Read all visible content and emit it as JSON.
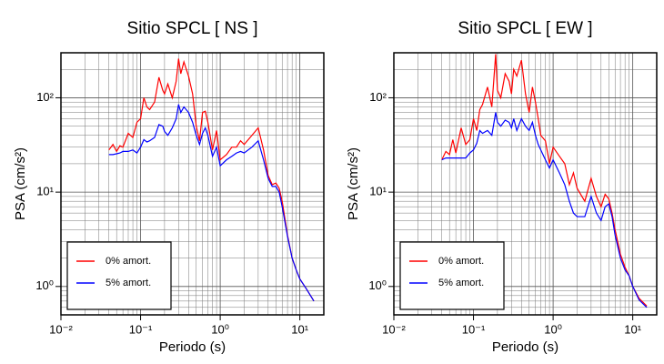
{
  "chart_data": [
    {
      "type": "line",
      "title": "Sitio SPCL [ NS ]",
      "xlabel": "Periodo (s)",
      "ylabel": "PSA (cm/s²)",
      "log_x": true,
      "log_y": true,
      "grid": true,
      "legend": "lower left",
      "xlim": [
        0.01,
        20
      ],
      "ylim": [
        0.5,
        300
      ],
      "xticks": [
        {
          "value": 0.01,
          "label": "10⁻²"
        },
        {
          "value": 0.1,
          "label": "10⁻¹"
        },
        {
          "value": 1,
          "label": "10⁰"
        },
        {
          "value": 10,
          "label": "10¹"
        }
      ],
      "yticks": [
        {
          "value": 1,
          "label": "10⁰"
        },
        {
          "value": 10,
          "label": "10¹"
        },
        {
          "value": 100,
          "label": "10²"
        }
      ],
      "x": [
        0.04,
        0.045,
        0.05,
        0.055,
        0.06,
        0.07,
        0.08,
        0.09,
        0.1,
        0.11,
        0.12,
        0.13,
        0.15,
        0.17,
        0.19,
        0.2,
        0.22,
        0.25,
        0.28,
        0.3,
        0.32,
        0.35,
        0.4,
        0.45,
        0.5,
        0.55,
        0.6,
        0.65,
        0.7,
        0.8,
        0.9,
        1.0,
        1.2,
        1.4,
        1.6,
        1.8,
        2.0,
        2.5,
        3.0,
        3.5,
        4.0,
        4.5,
        5.0,
        5.5,
        6,
        7,
        8,
        9,
        10,
        12,
        15
      ],
      "series": [
        {
          "name": "0% amort.",
          "color": "#ff0000",
          "values": [
            28,
            32,
            27,
            31,
            30,
            42,
            38,
            55,
            60,
            100,
            80,
            75,
            90,
            165,
            120,
            110,
            140,
            100,
            150,
            260,
            180,
            240,
            170,
            110,
            50,
            35,
            70,
            72,
            55,
            28,
            45,
            22,
            25,
            30,
            30,
            35,
            32,
            40,
            48,
            28,
            15,
            12,
            12.5,
            11,
            8,
            3.5,
            2,
            1.5,
            1.2,
            0.95,
            0.7
          ]
        },
        {
          "name": "5% amort.",
          "color": "#0000ff",
          "values": [
            25,
            25,
            25.5,
            26,
            27,
            27,
            28,
            26,
            30,
            36,
            34,
            35,
            38,
            52,
            50,
            44,
            40,
            48,
            60,
            85,
            70,
            80,
            70,
            55,
            40,
            32,
            42,
            48,
            40,
            24,
            30,
            19,
            22,
            24,
            26,
            27,
            26,
            30,
            35,
            22,
            14,
            11.5,
            11.5,
            10,
            7,
            3.4,
            2,
            1.5,
            1.2,
            0.95,
            0.7
          ]
        }
      ]
    },
    {
      "type": "line",
      "title": "Sitio SPCL [ EW ]",
      "xlabel": "Periodo (s)",
      "ylabel": "PSA (cm/s²)",
      "log_x": true,
      "log_y": true,
      "grid": true,
      "legend": "lower left",
      "xlim": [
        0.01,
        20
      ],
      "ylim": [
        0.5,
        300
      ],
      "xticks": [
        {
          "value": 0.01,
          "label": "10⁻²"
        },
        {
          "value": 0.1,
          "label": "10⁻¹"
        },
        {
          "value": 1,
          "label": "10⁰"
        },
        {
          "value": 10,
          "label": "10¹"
        }
      ],
      "yticks": [
        {
          "value": 1,
          "label": "10⁰"
        },
        {
          "value": 10,
          "label": "10¹"
        },
        {
          "value": 100,
          "label": "10²"
        }
      ],
      "x": [
        0.04,
        0.045,
        0.05,
        0.055,
        0.06,
        0.07,
        0.08,
        0.09,
        0.1,
        0.11,
        0.12,
        0.13,
        0.15,
        0.17,
        0.19,
        0.2,
        0.22,
        0.25,
        0.28,
        0.3,
        0.32,
        0.35,
        0.4,
        0.45,
        0.5,
        0.55,
        0.6,
        0.65,
        0.7,
        0.8,
        0.9,
        1.0,
        1.2,
        1.4,
        1.6,
        1.8,
        2.0,
        2.5,
        3.0,
        3.5,
        4.0,
        4.5,
        5.0,
        5.5,
        6,
        7,
        8,
        9,
        10,
        12,
        15
      ],
      "series": [
        {
          "name": "0% amort.",
          "color": "#ff0000",
          "values": [
            22,
            27,
            25,
            36,
            26,
            48,
            32,
            36,
            60,
            45,
            75,
            85,
            130,
            80,
            290,
            120,
            100,
            180,
            150,
            110,
            200,
            170,
            250,
            110,
            70,
            130,
            90,
            60,
            40,
            35,
            20,
            30,
            24,
            20,
            12,
            16,
            11,
            8,
            14,
            9,
            7,
            9.5,
            8.5,
            6,
            4,
            2.2,
            1.6,
            1.3,
            1.0,
            0.75,
            0.62
          ]
        },
        {
          "name": "5% amort.",
          "color": "#0000ff",
          "values": [
            22,
            23,
            23,
            23,
            23,
            23,
            23,
            26,
            28,
            33,
            45,
            42,
            45,
            40,
            70,
            55,
            50,
            58,
            55,
            48,
            60,
            45,
            60,
            50,
            45,
            55,
            40,
            32,
            28,
            22,
            18,
            22,
            16,
            12,
            8,
            6,
            5.5,
            5.5,
            9,
            6,
            5,
            7,
            7.5,
            5.5,
            3.5,
            2,
            1.5,
            1.3,
            1.0,
            0.72,
            0.6
          ]
        }
      ]
    }
  ]
}
